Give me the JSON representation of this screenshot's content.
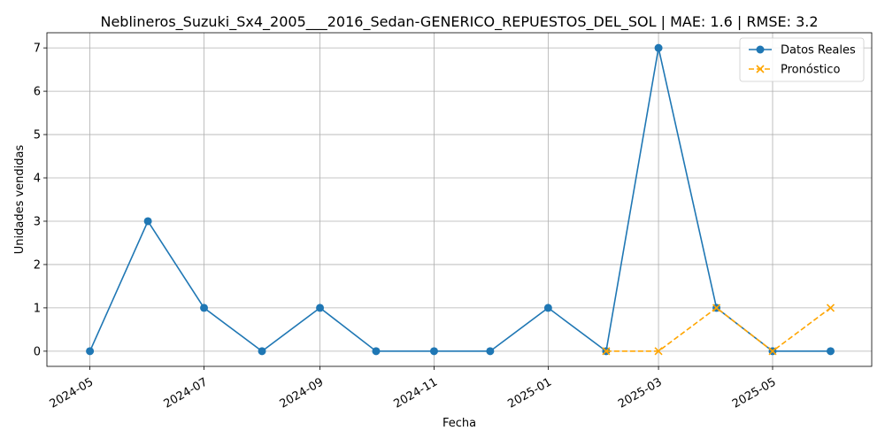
{
  "chart_data": {
    "type": "line",
    "title": "Neblineros_Suzuki_Sx4_2005___2016_Sedan-GENERICO_REPUESTOS_DEL_SOL | MAE: 1.6 | RMSE: 3.2",
    "xlabel": "Fecha",
    "ylabel": "Unidades vendidas",
    "x_ticks": [
      "2024-05",
      "2024-07",
      "2024-09",
      "2024-11",
      "2025-01",
      "2025-03",
      "2025-05"
    ],
    "y_ticks": [
      0,
      1,
      2,
      3,
      4,
      5,
      6,
      7
    ],
    "ylim": [
      -0.35,
      7.35
    ],
    "xlim": [
      "2024-04-08",
      "2025-06-23"
    ],
    "grid": true,
    "legend_position": "top-right",
    "series": [
      {
        "name": "Datos Reales",
        "color": "#1f77b4",
        "marker": "circle",
        "line_style": "solid",
        "x": [
          "2024-05-01",
          "2024-06-01",
          "2024-07-01",
          "2024-08-01",
          "2024-09-01",
          "2024-10-01",
          "2024-11-01",
          "2024-12-01",
          "2025-01-01",
          "2025-02-01",
          "2025-03-01",
          "2025-04-01",
          "2025-05-01",
          "2025-06-01"
        ],
        "values": [
          0,
          3,
          1,
          0,
          1,
          0,
          0,
          0,
          1,
          0,
          7,
          1,
          0,
          0
        ]
      },
      {
        "name": "Pronóstico",
        "color": "#ffa500",
        "marker": "x",
        "line_style": "dashed",
        "x": [
          "2025-02-01",
          "2025-03-01",
          "2025-04-01",
          "2025-05-01",
          "2025-06-01"
        ],
        "values": [
          0,
          0,
          1,
          0,
          1
        ]
      }
    ]
  }
}
